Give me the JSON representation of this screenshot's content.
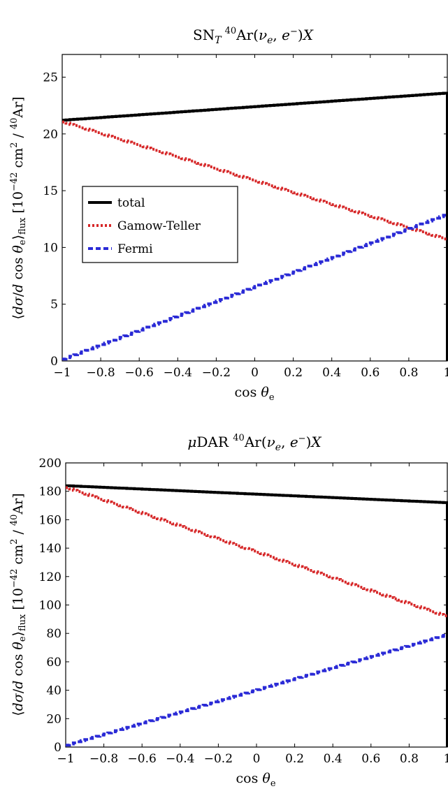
{
  "chart_data": [
    {
      "type": "line",
      "title": "SN_T ⁴⁰Ar(ν_e, e⁻)X",
      "xlabel": "cos θ_e",
      "ylabel": "⟨dσ/d cos θ_e⟩_flux [10⁻⁴² cm² / ⁴⁰Ar]",
      "xlim": [
        -1,
        1
      ],
      "ylim": [
        0,
        27
      ],
      "xticks": [
        "−1",
        "−0.8",
        "−0.6",
        "−0.4",
        "−0.2",
        "0",
        "0.2",
        "0.4",
        "0.6",
        "0.8",
        "1"
      ],
      "yticks": [
        "0",
        "5",
        "10",
        "15",
        "20",
        "25"
      ],
      "ytick_values": [
        0,
        5,
        10,
        15,
        20,
        25
      ],
      "legend": "middle-left",
      "grid": false,
      "series": [
        {
          "name": "total",
          "color": "#000000",
          "style": "solid",
          "x": [
            -1,
            1
          ],
          "y": [
            21.2,
            23.6
          ]
        },
        {
          "name": "Gamow-Teller",
          "color": "#d62728",
          "style": "dotted",
          "x": [
            -1,
            1
          ],
          "y": [
            21.1,
            10.7
          ]
        },
        {
          "name": "Fermi",
          "color": "#2a2ad6",
          "style": "dashed",
          "x": [
            -1,
            1
          ],
          "y": [
            0.1,
            12.9
          ]
        }
      ]
    },
    {
      "type": "line",
      "title": "μDAR ⁴⁰Ar(ν_e, e⁻)X",
      "xlabel": "cos θ_e",
      "ylabel": "⟨dσ/d cos θ_e⟩_flux [10⁻⁴² cm² / ⁴⁰Ar]",
      "xlim": [
        -1,
        1
      ],
      "ylim": [
        0,
        200
      ],
      "xticks": [
        "−1",
        "−0.8",
        "−0.6",
        "−0.4",
        "−0.2",
        "0",
        "0.2",
        "0.4",
        "0.6",
        "0.8",
        "1"
      ],
      "yticks": [
        "0",
        "20",
        "40",
        "60",
        "80",
        "100",
        "120",
        "140",
        "160",
        "180",
        "200"
      ],
      "ytick_values": [
        0,
        20,
        40,
        60,
        80,
        100,
        120,
        140,
        160,
        180,
        200
      ],
      "grid": false,
      "series": [
        {
          "name": "total",
          "color": "#000000",
          "style": "solid",
          "x": [
            -1,
            1
          ],
          "y": [
            184,
            172
          ]
        },
        {
          "name": "Gamow-Teller",
          "color": "#d62728",
          "style": "dotted",
          "x": [
            -1,
            1
          ],
          "y": [
            183,
            92
          ]
        },
        {
          "name": "Fermi",
          "color": "#2a2ad6",
          "style": "dashed",
          "x": [
            -1,
            1
          ],
          "y": [
            1,
            79
          ]
        }
      ]
    }
  ]
}
